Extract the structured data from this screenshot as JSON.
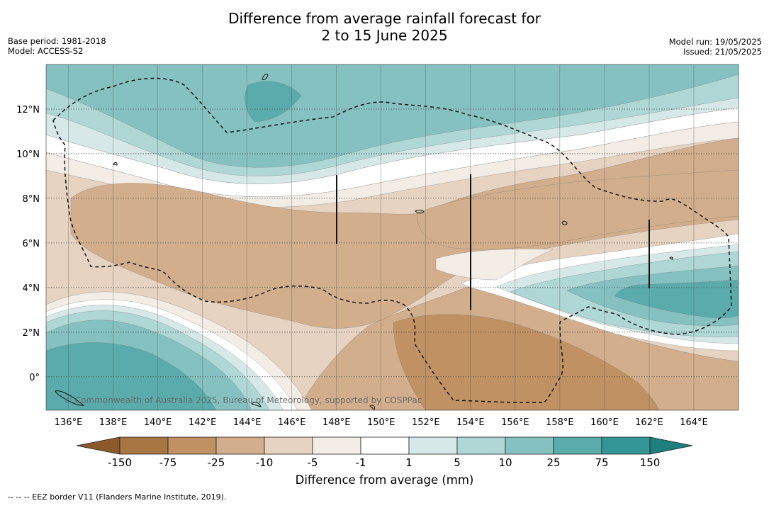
{
  "title": {
    "line1": "Difference from average rainfall forecast for",
    "line2": "2 to 15 June 2025"
  },
  "meta_left": {
    "base_period": "Base period: 1981-2018",
    "model": "Model: ACCESS-S2"
  },
  "meta_right": {
    "model_run": "Model run: 19/05/2025",
    "issued": "Issued: 21/05/2025"
  },
  "map": {
    "credit": "© Commonwealth of Australia 2025, Bureau of Meteorology, supported by COSPPac",
    "lon_labels": [
      "136°E",
      "138°E",
      "140°E",
      "142°E",
      "144°E",
      "146°E",
      "148°E",
      "150°E",
      "152°E",
      "154°E",
      "156°E",
      "158°E",
      "160°E",
      "162°E",
      "164°E"
    ],
    "lat_labels": [
      "12°N",
      "10°N",
      "8°N",
      "6°N",
      "4°N",
      "2°N",
      "0°"
    ],
    "lon_range": [
      135.0,
      166.0
    ],
    "lat_range": [
      -1.5,
      14.0
    ],
    "colors": {
      "dry_150": "#a87642",
      "dry_75": "#bf9163",
      "dry_25": "#d2ae8c",
      "dry_10": "#e6d3c1",
      "dry_5": "#f3ede6",
      "neutral": "#ffffff",
      "wet_1": "#d6e9e8",
      "wet_5": "#aed7d5",
      "wet_10": "#84c1c0",
      "wet_25": "#5aabab",
      "wet_75": "#349796",
      "wet_150": "#1f7f7e"
    }
  },
  "colorbar": {
    "title": "Difference from average (mm)",
    "ticks": [
      "-150",
      "-75",
      "-25",
      "-10",
      "-5",
      "-1",
      "1",
      "5",
      "10",
      "25",
      "75",
      "150"
    ]
  },
  "footnote": "--  --  -- EEZ border V11 (Flanders Marine Institute, 2019)."
}
